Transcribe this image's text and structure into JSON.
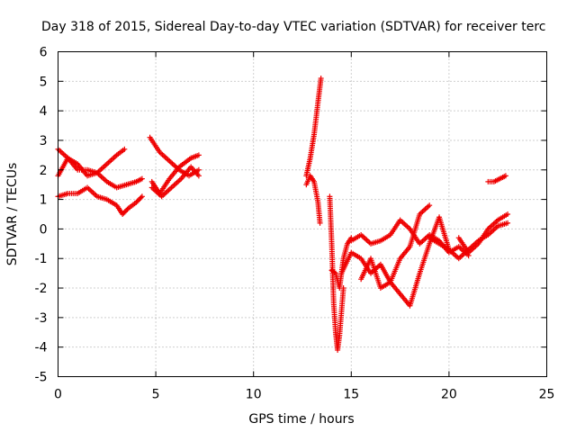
{
  "chart_data": {
    "type": "scatter",
    "title": "Day 318 of 2015, Sidereal Day-to-day VTEC variation (SDTVAR) for receiver terc",
    "xlabel": "GPS time / hours",
    "ylabel": "SDTVAR / TECUs",
    "xlim": [
      0,
      25
    ],
    "ylim": [
      -5,
      6
    ],
    "xticks": [
      0,
      5,
      10,
      15,
      20,
      25
    ],
    "yticks": [
      -5,
      -4,
      -3,
      -2,
      -1,
      0,
      1,
      2,
      3,
      4,
      5,
      6
    ],
    "grid": true,
    "marker": "plus",
    "colors": {
      "series": "#ee0000"
    },
    "series": [
      {
        "segments": [
          {
            "x": [
              0,
              0.5,
              1.0,
              1.5,
              2.0,
              2.5,
              3.0,
              3.4
            ],
            "y": [
              1.8,
              2.4,
              2.2,
              1.8,
              1.9,
              2.2,
              2.5,
              2.7
            ]
          },
          {
            "x": [
              0,
              0.5,
              1.0,
              1.5,
              2.0,
              2.5,
              3.0,
              3.5,
              4.0,
              4.3
            ],
            "y": [
              2.7,
              2.4,
              2.0,
              2.0,
              1.9,
              1.6,
              1.4,
              1.5,
              1.6,
              1.7
            ]
          },
          {
            "x": [
              0,
              0.5,
              1.0,
              1.5,
              2.0,
              2.5,
              3.0,
              3.3,
              3.6,
              4.0,
              4.3
            ],
            "y": [
              1.1,
              1.2,
              1.2,
              1.4,
              1.1,
              1.0,
              0.8,
              0.5,
              0.7,
              0.9,
              1.1
            ]
          },
          {
            "x": [
              4.7,
              5.2,
              5.7,
              6.2,
              6.7,
              7.2
            ],
            "y": [
              3.1,
              2.6,
              2.3,
              2.0,
              1.8,
              2.0
            ]
          },
          {
            "x": [
              4.8,
              5.3,
              5.8,
              6.3,
              6.8,
              7.2
            ],
            "y": [
              1.4,
              1.1,
              1.4,
              1.7,
              2.1,
              1.8
            ]
          },
          {
            "x": [
              4.8,
              5.2,
              5.7,
              6.2,
              6.8,
              7.2
            ],
            "y": [
              1.6,
              1.2,
              1.7,
              2.1,
              2.4,
              2.5
            ]
          },
          {
            "x": [
              12.7,
              12.9,
              13.1,
              13.3,
              13.45
            ],
            "y": [
              1.8,
              2.4,
              3.2,
              4.3,
              5.1
            ]
          },
          {
            "x": [
              12.7,
              12.9,
              13.1,
              13.3,
              13.4
            ],
            "y": [
              1.5,
              1.8,
              1.6,
              0.9,
              0.2
            ]
          },
          {
            "x": [
              13.9,
              14.0,
              14.1,
              14.2,
              14.3,
              14.4,
              14.6
            ],
            "y": [
              1.1,
              -0.5,
              -2.5,
              -3.5,
              -4.1,
              -3.6,
              -2.0
            ]
          },
          {
            "x": [
              14.0,
              14.2,
              14.4,
              14.6,
              14.8,
              15.0
            ],
            "y": [
              -1.4,
              -1.5,
              -2.0,
              -1.0,
              -0.5,
              -0.3
            ]
          },
          {
            "x": [
              15.0,
              15.5,
              16.0,
              16.5,
              17.0,
              17.5,
              18.0,
              18.5,
              19.0,
              19.5,
              20.0,
              20.5,
              21.0
            ],
            "y": [
              -0.4,
              -0.2,
              -0.5,
              -0.4,
              -0.2,
              0.3,
              0.0,
              -0.5,
              -0.2,
              -0.4,
              -0.8,
              -0.6,
              -0.9
            ]
          },
          {
            "x": [
              14.5,
              15.0,
              15.5,
              16.0,
              16.5,
              17.0,
              17.5,
              18.0,
              18.5,
              19.0
            ],
            "y": [
              -1.5,
              -0.8,
              -1.0,
              -1.5,
              -1.2,
              -1.8,
              -1.0,
              -0.6,
              0.5,
              0.8
            ]
          },
          {
            "x": [
              15.5,
              16.0,
              16.5,
              17.0,
              17.5,
              18.0,
              18.5,
              19.0,
              19.5,
              20.0
            ],
            "y": [
              -1.7,
              -1.0,
              -2.0,
              -1.8,
              -2.2,
              -2.6,
              -1.5,
              -0.5,
              0.4,
              -0.7
            ]
          },
          {
            "x": [
              19.0,
              19.5,
              20.0,
              20.5,
              21.0,
              21.5,
              22.0,
              22.5,
              23.0
            ],
            "y": [
              -0.3,
              -0.5,
              -0.7,
              -1.0,
              -0.7,
              -0.4,
              -0.2,
              0.1,
              0.2
            ]
          },
          {
            "x": [
              20.5,
              21.0,
              21.5,
              22.0,
              22.5,
              23.0
            ],
            "y": [
              -0.3,
              -0.8,
              -0.5,
              0.0,
              0.3,
              0.5
            ]
          },
          {
            "x": [
              22.0,
              22.3,
              22.6,
              22.9
            ],
            "y": [
              1.6,
              1.6,
              1.7,
              1.8
            ]
          }
        ]
      }
    ]
  }
}
